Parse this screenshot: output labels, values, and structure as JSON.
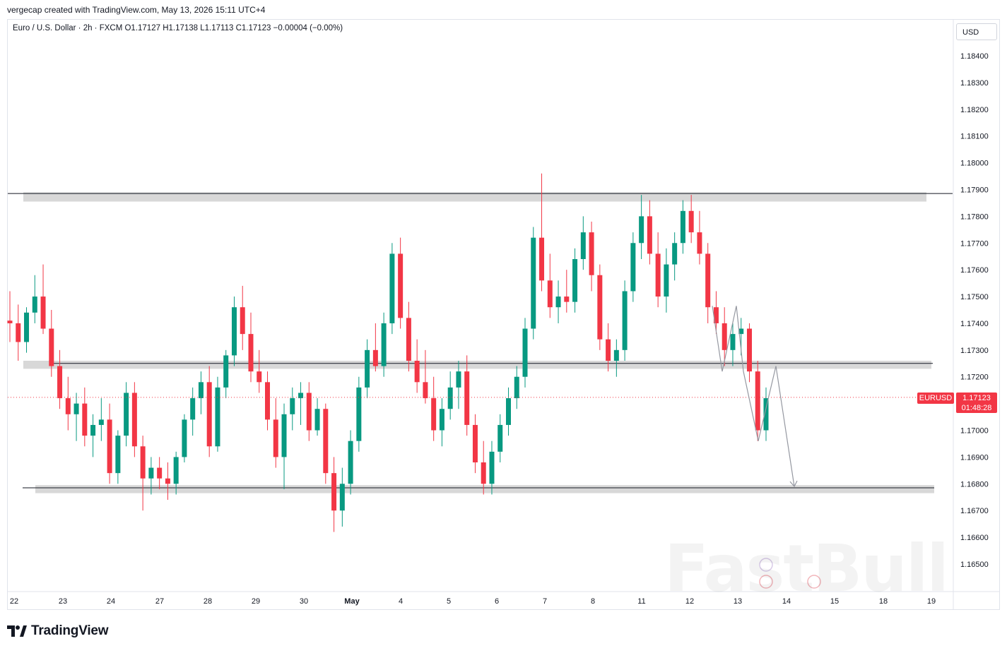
{
  "caption": "vergecap created with TradingView.com, May 13, 2026 15:11 UTC+4",
  "legend": "Euro / U.S. Dollar · 2h · FXCM  O1.17127  H1.17138  L1.17113  C1.17123  −0.00004 (−0.00%)",
  "currency": "USD",
  "symbol_label": "EURUSD",
  "last_price": "1.17123",
  "countdown": "01:48:28",
  "brand": "TradingView",
  "watermark": "FastBull",
  "colors": {
    "up": "#089981",
    "down": "#f23645",
    "zone": "#d1d1d1",
    "price_line": "#f23645",
    "projection": "#9598a1"
  },
  "chart_data": {
    "type": "candlestick",
    "ylim": [
      1.164,
      1.1855
    ],
    "y_ticks": [
      "1.18400",
      "1.18300",
      "1.18200",
      "1.18100",
      "1.18000",
      "1.17900",
      "1.17800",
      "1.17700",
      "1.17600",
      "1.17500",
      "1.17400",
      "1.17300",
      "1.17200",
      "1.17000",
      "1.16900",
      "1.16800",
      "1.16700",
      "1.16600",
      "1.16500"
    ],
    "x_ticks": [
      "22",
      "23",
      "24",
      "27",
      "28",
      "29",
      "30",
      "May",
      "4",
      "5",
      "6",
      "7",
      "8",
      "11",
      "12",
      "13",
      "14",
      "15",
      "18",
      "19"
    ],
    "zones": [
      {
        "low": 1.17855,
        "high": 1.1789,
        "line": 1.17885
      },
      {
        "low": 1.1723,
        "high": 1.1726,
        "line": 1.1725
      },
      {
        "low": 1.16765,
        "high": 1.16795,
        "line": 1.16785
      }
    ],
    "projection_path": [
      1.17465,
      1.1722,
      1.17465,
      1.1722,
      1.1696,
      1.1724,
      1.1679
    ],
    "ohlc": [
      [
        1.1741,
        1.1752,
        1.1733,
        1.174
      ],
      [
        1.174,
        1.1747,
        1.1726,
        1.1733
      ],
      [
        1.1733,
        1.1746,
        1.1729,
        1.1744
      ],
      [
        1.1744,
        1.1758,
        1.174,
        1.175
      ],
      [
        1.175,
        1.1762,
        1.1736,
        1.1738
      ],
      [
        1.1738,
        1.1745,
        1.172,
        1.1724
      ],
      [
        1.1724,
        1.173,
        1.1708,
        1.1712
      ],
      [
        1.1712,
        1.172,
        1.17,
        1.1706
      ],
      [
        1.1706,
        1.1714,
        1.1696,
        1.171
      ],
      [
        1.171,
        1.1716,
        1.1694,
        1.1698
      ],
      [
        1.1698,
        1.1706,
        1.169,
        1.1702
      ],
      [
        1.1702,
        1.1712,
        1.1696,
        1.1704
      ],
      [
        1.1704,
        1.171,
        1.168,
        1.1684
      ],
      [
        1.1684,
        1.17,
        1.168,
        1.1698
      ],
      [
        1.1698,
        1.1718,
        1.1694,
        1.1714
      ],
      [
        1.1714,
        1.1718,
        1.169,
        1.1694
      ],
      [
        1.1694,
        1.1698,
        1.167,
        1.1682
      ],
      [
        1.1682,
        1.169,
        1.1676,
        1.1686
      ],
      [
        1.1686,
        1.169,
        1.1678,
        1.1682
      ],
      [
        1.1682,
        1.1688,
        1.1674,
        1.168
      ],
      [
        1.168,
        1.1692,
        1.1676,
        1.169
      ],
      [
        1.169,
        1.1706,
        1.1688,
        1.1704
      ],
      [
        1.1704,
        1.1716,
        1.1698,
        1.1712
      ],
      [
        1.1712,
        1.1722,
        1.1706,
        1.1718
      ],
      [
        1.1718,
        1.1724,
        1.169,
        1.1694
      ],
      [
        1.1694,
        1.172,
        1.1692,
        1.1716
      ],
      [
        1.1716,
        1.173,
        1.1712,
        1.1728
      ],
      [
        1.1728,
        1.175,
        1.1724,
        1.1746
      ],
      [
        1.1746,
        1.1754,
        1.173,
        1.1736
      ],
      [
        1.1736,
        1.1744,
        1.1718,
        1.1722
      ],
      [
        1.1722,
        1.173,
        1.1714,
        1.1718
      ],
      [
        1.1718,
        1.1722,
        1.17,
        1.1704
      ],
      [
        1.1704,
        1.1712,
        1.1686,
        1.169
      ],
      [
        1.169,
        1.171,
        1.1678,
        1.1706
      ],
      [
        1.1706,
        1.1716,
        1.17,
        1.1712
      ],
      [
        1.1712,
        1.1718,
        1.1702,
        1.1714
      ],
      [
        1.1714,
        1.1718,
        1.1696,
        1.17
      ],
      [
        1.17,
        1.1712,
        1.1698,
        1.1708
      ],
      [
        1.1708,
        1.171,
        1.168,
        1.1684
      ],
      [
        1.1684,
        1.169,
        1.1662,
        1.167
      ],
      [
        1.167,
        1.1686,
        1.1664,
        1.168
      ],
      [
        1.168,
        1.17,
        1.1676,
        1.1696
      ],
      [
        1.1696,
        1.172,
        1.1692,
        1.1716
      ],
      [
        1.1716,
        1.1734,
        1.1712,
        1.173
      ],
      [
        1.173,
        1.174,
        1.1722,
        1.1724
      ],
      [
        1.1724,
        1.1744,
        1.172,
        1.174
      ],
      [
        1.174,
        1.177,
        1.1736,
        1.1766
      ],
      [
        1.1766,
        1.1772,
        1.1738,
        1.1742
      ],
      [
        1.1742,
        1.1748,
        1.1722,
        1.1726
      ],
      [
        1.1726,
        1.1734,
        1.1714,
        1.1718
      ],
      [
        1.1718,
        1.173,
        1.171,
        1.1712
      ],
      [
        1.1712,
        1.172,
        1.1696,
        1.17
      ],
      [
        1.17,
        1.1712,
        1.1694,
        1.1708
      ],
      [
        1.1708,
        1.1722,
        1.1704,
        1.1716
      ],
      [
        1.1716,
        1.1726,
        1.1708,
        1.1722
      ],
      [
        1.1722,
        1.1728,
        1.1698,
        1.1702
      ],
      [
        1.1702,
        1.1706,
        1.1684,
        1.1688
      ],
      [
        1.1688,
        1.1696,
        1.1676,
        1.168
      ],
      [
        1.168,
        1.1696,
        1.1676,
        1.1692
      ],
      [
        1.1692,
        1.1706,
        1.1688,
        1.1702
      ],
      [
        1.1702,
        1.1716,
        1.1698,
        1.1712
      ],
      [
        1.1712,
        1.1724,
        1.1708,
        1.172
      ],
      [
        1.172,
        1.1742,
        1.1716,
        1.1738
      ],
      [
        1.1738,
        1.1776,
        1.1734,
        1.1772
      ],
      [
        1.1772,
        1.1796,
        1.1752,
        1.1756
      ],
      [
        1.1756,
        1.1766,
        1.1742,
        1.1746
      ],
      [
        1.1746,
        1.1756,
        1.174,
        1.175
      ],
      [
        1.175,
        1.176,
        1.1744,
        1.1748
      ],
      [
        1.1748,
        1.1768,
        1.1744,
        1.1764
      ],
      [
        1.1764,
        1.178,
        1.176,
        1.1774
      ],
      [
        1.1774,
        1.1778,
        1.1752,
        1.1758
      ],
      [
        1.1758,
        1.1762,
        1.173,
        1.1734
      ],
      [
        1.1734,
        1.174,
        1.1722,
        1.1726
      ],
      [
        1.1726,
        1.1734,
        1.172,
        1.173
      ],
      [
        1.173,
        1.1756,
        1.1726,
        1.1752
      ],
      [
        1.1752,
        1.1774,
        1.1748,
        1.177
      ],
      [
        1.177,
        1.1788,
        1.1764,
        1.178
      ],
      [
        1.178,
        1.1786,
        1.1762,
        1.1766
      ],
      [
        1.1766,
        1.1774,
        1.1746,
        1.175
      ],
      [
        1.175,
        1.1768,
        1.1744,
        1.1762
      ],
      [
        1.1762,
        1.1774,
        1.1756,
        1.177
      ],
      [
        1.177,
        1.1786,
        1.1766,
        1.1782
      ],
      [
        1.1782,
        1.1788,
        1.177,
        1.1774
      ],
      [
        1.1774,
        1.1782,
        1.1762,
        1.1766
      ],
      [
        1.1766,
        1.177,
        1.174,
        1.1746
      ],
      [
        1.1746,
        1.1752,
        1.1736,
        1.174
      ],
      [
        1.174,
        1.1746,
        1.1724,
        1.173
      ],
      [
        1.173,
        1.174,
        1.1724,
        1.1736
      ],
      [
        1.1736,
        1.1742,
        1.1728,
        1.1738
      ],
      [
        1.1738,
        1.174,
        1.1718,
        1.1722
      ],
      [
        1.1722,
        1.1726,
        1.1696,
        1.17
      ],
      [
        1.17,
        1.1716,
        1.1696,
        1.1712
      ]
    ]
  }
}
